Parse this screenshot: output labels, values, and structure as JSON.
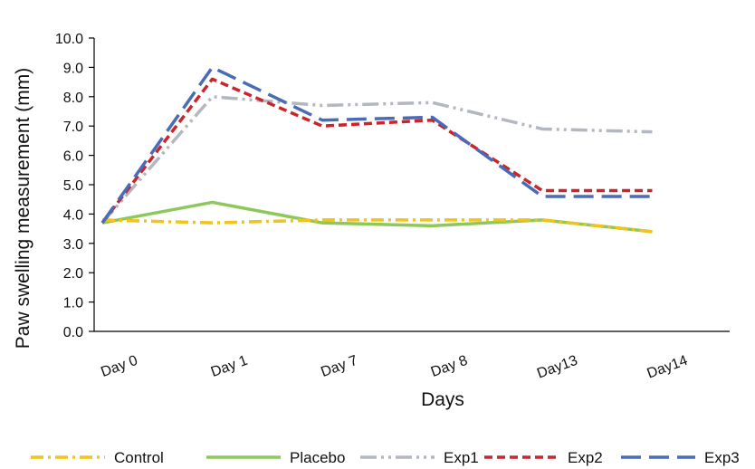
{
  "chart_data": {
    "type": "line",
    "categories": [
      "Day 0",
      "Day 1",
      "Day 7",
      "Day 8",
      "Day13",
      "Day14"
    ],
    "xlabel": "Days",
    "ylabel": "Paw swelling measurement (mm)",
    "ylim": [
      0.0,
      10.0
    ],
    "yticks": [
      "0.0",
      "1.0",
      "2.0",
      "3.0",
      "4.0",
      "5.0",
      "6.0",
      "7.0",
      "8.0",
      "9.0",
      "10.0"
    ],
    "grid": false,
    "legend_position": "bottom",
    "series": [
      {
        "name": "Control",
        "values": [
          3.8,
          3.7,
          3.8,
          3.8,
          3.8,
          3.4
        ],
        "color": "#f2c318",
        "dash": "dash-dot"
      },
      {
        "name": "Placebo",
        "values": [
          3.7,
          4.4,
          3.7,
          3.6,
          3.8,
          3.4
        ],
        "color": "#8dc95a",
        "dash": "solid"
      },
      {
        "name": "Exp1",
        "values": [
          3.7,
          8.0,
          7.7,
          7.8,
          6.9,
          6.8
        ],
        "color": "#b3b7bf",
        "dash": "dash-dot-dot"
      },
      {
        "name": "Exp2",
        "values": [
          3.7,
          8.6,
          7.0,
          7.2,
          4.8,
          4.8
        ],
        "color": "#c9252b",
        "dash": "short-dash"
      },
      {
        "name": "Exp3",
        "values": [
          3.7,
          9.0,
          7.2,
          7.3,
          4.6,
          4.6
        ],
        "color": "#4a6bb6",
        "dash": "long-dash"
      }
    ]
  }
}
